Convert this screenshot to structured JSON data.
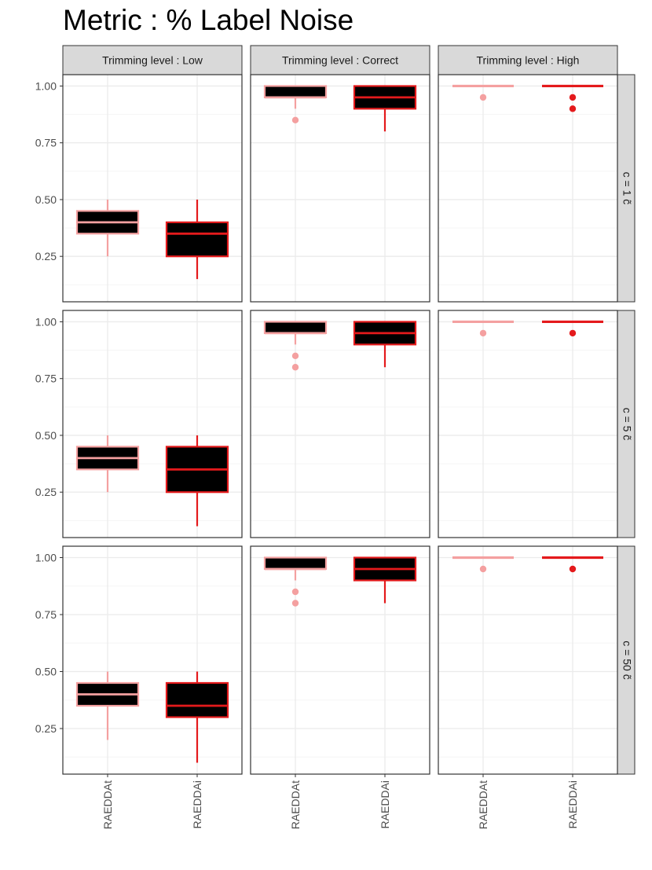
{
  "chart_data": {
    "type": "boxplot",
    "title": "Metric :  % Label Noise",
    "column_facets": [
      "Trimming level :  Low",
      "Trimming level :  Correct",
      "Trimming level :  High"
    ],
    "row_facets": [
      "c = 1 c̃",
      "c = 5 c̃",
      "c = 50 c̃"
    ],
    "categories": [
      "RAEDDAt",
      "RAEDDAi"
    ],
    "y_ticks": [
      "0.25",
      "0.50",
      "0.75",
      "1.00"
    ],
    "ylim": [
      0.05,
      1.05
    ],
    "grid": true,
    "fill_color": "#000000",
    "series_colors": {
      "RAEDDAt": "#f4a0a0",
      "RAEDDAi": "#e41a1c"
    },
    "panels": [
      [
        [
          {
            "category": "RAEDDAt",
            "min": 0.25,
            "q1": 0.35,
            "median": 0.4,
            "q3": 0.45,
            "max": 0.5,
            "outliers": []
          },
          {
            "category": "RAEDDAi",
            "min": 0.15,
            "q1": 0.25,
            "median": 0.35,
            "q3": 0.4,
            "max": 0.5,
            "outliers": []
          }
        ],
        [
          {
            "category": "RAEDDAt",
            "min": 0.9,
            "q1": 0.95,
            "median": 0.95,
            "q3": 1.0,
            "max": 1.0,
            "outliers": [
              0.85
            ]
          },
          {
            "category": "RAEDDAi",
            "min": 0.8,
            "q1": 0.9,
            "median": 0.95,
            "q3": 1.0,
            "max": 1.0,
            "outliers": []
          }
        ],
        [
          {
            "category": "RAEDDAt",
            "min": 1.0,
            "q1": 1.0,
            "median": 1.0,
            "q3": 1.0,
            "max": 1.0,
            "outliers": [
              0.95
            ]
          },
          {
            "category": "RAEDDAi",
            "min": 1.0,
            "q1": 1.0,
            "median": 1.0,
            "q3": 1.0,
            "max": 1.0,
            "outliers": [
              0.95,
              0.9
            ]
          }
        ]
      ],
      [
        [
          {
            "category": "RAEDDAt",
            "min": 0.25,
            "q1": 0.35,
            "median": 0.4,
            "q3": 0.45,
            "max": 0.5,
            "outliers": []
          },
          {
            "category": "RAEDDAi",
            "min": 0.1,
            "q1": 0.25,
            "median": 0.35,
            "q3": 0.45,
            "max": 0.5,
            "outliers": []
          }
        ],
        [
          {
            "category": "RAEDDAt",
            "min": 0.9,
            "q1": 0.95,
            "median": 0.95,
            "q3": 1.0,
            "max": 1.0,
            "outliers": [
              0.85,
              0.8
            ]
          },
          {
            "category": "RAEDDAi",
            "min": 0.8,
            "q1": 0.9,
            "median": 0.95,
            "q3": 1.0,
            "max": 1.0,
            "outliers": []
          }
        ],
        [
          {
            "category": "RAEDDAt",
            "min": 1.0,
            "q1": 1.0,
            "median": 1.0,
            "q3": 1.0,
            "max": 1.0,
            "outliers": [
              0.95
            ]
          },
          {
            "category": "RAEDDAi",
            "min": 1.0,
            "q1": 1.0,
            "median": 1.0,
            "q3": 1.0,
            "max": 1.0,
            "outliers": [
              0.95
            ]
          }
        ]
      ],
      [
        [
          {
            "category": "RAEDDAt",
            "min": 0.2,
            "q1": 0.35,
            "median": 0.4,
            "q3": 0.45,
            "max": 0.5,
            "outliers": []
          },
          {
            "category": "RAEDDAi",
            "min": 0.1,
            "q1": 0.3,
            "median": 0.35,
            "q3": 0.45,
            "max": 0.5,
            "outliers": []
          }
        ],
        [
          {
            "category": "RAEDDAt",
            "min": 0.9,
            "q1": 0.95,
            "median": 0.95,
            "q3": 1.0,
            "max": 1.0,
            "outliers": [
              0.85,
              0.8
            ]
          },
          {
            "category": "RAEDDAi",
            "min": 0.8,
            "q1": 0.9,
            "median": 0.95,
            "q3": 1.0,
            "max": 1.0,
            "outliers": []
          }
        ],
        [
          {
            "category": "RAEDDAt",
            "min": 1.0,
            "q1": 1.0,
            "median": 1.0,
            "q3": 1.0,
            "max": 1.0,
            "outliers": [
              0.95
            ]
          },
          {
            "category": "RAEDDAi",
            "min": 1.0,
            "q1": 1.0,
            "median": 1.0,
            "q3": 1.0,
            "max": 1.0,
            "outliers": [
              0.95
            ]
          }
        ]
      ]
    ]
  }
}
